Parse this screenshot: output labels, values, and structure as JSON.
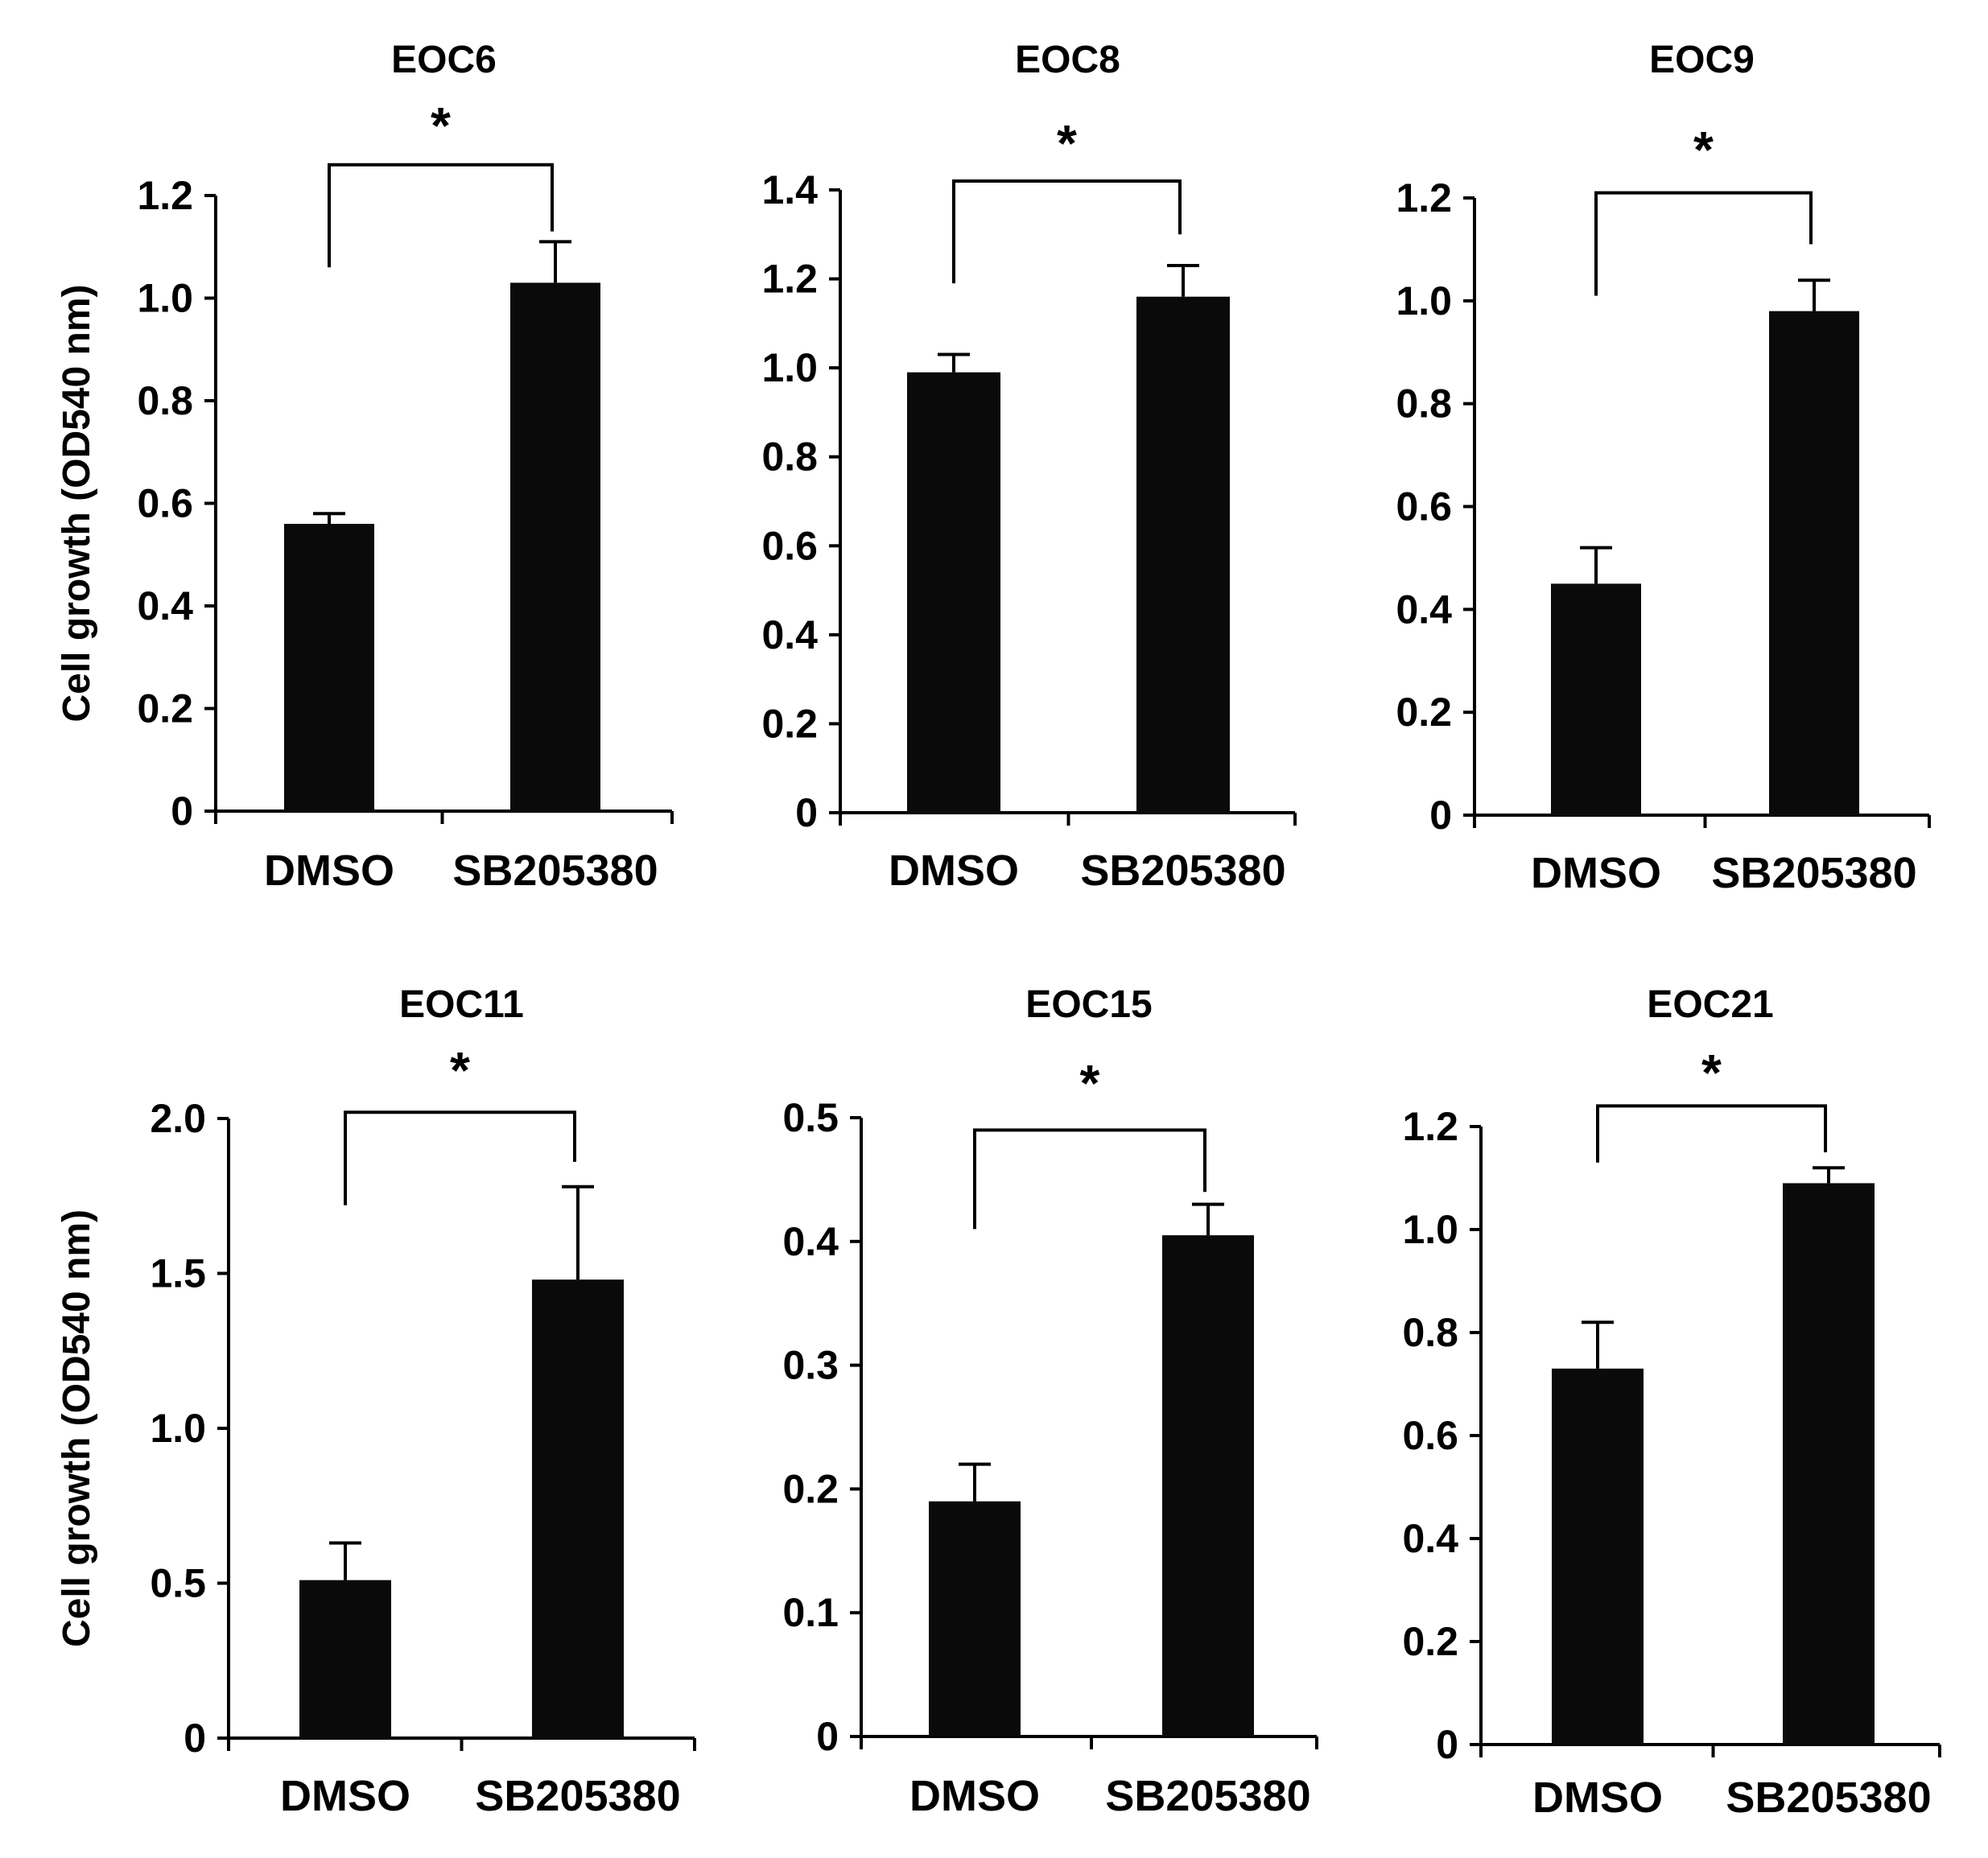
{
  "chart_data": [
    {
      "type": "bar",
      "title": "EOC6",
      "ylabel": "Cell growth (OD540 nm)",
      "categories": [
        "DMSO",
        "SB205380"
      ],
      "values": [
        0.56,
        1.03
      ],
      "errors": [
        0.02,
        0.08
      ],
      "ylim": [
        0,
        1.2
      ],
      "yticks": [
        0,
        0.2,
        0.4,
        0.6,
        0.8,
        1.0,
        1.2
      ],
      "ytick_labels": [
        "0",
        "0.2",
        "0.4",
        "0.6",
        "0.8",
        "1.0",
        "1.2"
      ],
      "bracket_left": 1.06,
      "bracket_right": 1.13,
      "bracket_top": 1.26,
      "significance": "*"
    },
    {
      "type": "bar",
      "title": "EOC8",
      "ylabel": "",
      "categories": [
        "DMSO",
        "SB205380"
      ],
      "values": [
        0.99,
        1.16
      ],
      "errors": [
        0.04,
        0.07
      ],
      "ylim": [
        0,
        1.4
      ],
      "yticks": [
        0,
        0.2,
        0.4,
        0.6,
        0.8,
        1.0,
        1.2,
        1.4
      ],
      "ytick_labels": [
        "0",
        "0.2",
        "0.4",
        "0.6",
        "0.8",
        "1.0",
        "1.2",
        "1.4"
      ],
      "bracket_left": 1.19,
      "bracket_right": 1.3,
      "bracket_top": 1.42,
      "significance": "*"
    },
    {
      "type": "bar",
      "title": "EOC9",
      "ylabel": "",
      "categories": [
        "DMSO",
        "SB205380"
      ],
      "values": [
        0.45,
        0.98
      ],
      "errors": [
        0.07,
        0.06
      ],
      "ylim": [
        0,
        1.2
      ],
      "yticks": [
        0,
        0.2,
        0.4,
        0.6,
        0.8,
        1.0,
        1.2
      ],
      "ytick_labels": [
        "0",
        "0.2",
        "0.4",
        "0.6",
        "0.8",
        "1.0",
        "1.2"
      ],
      "bracket_left": 1.01,
      "bracket_right": 1.11,
      "bracket_top": 1.21,
      "significance": "*"
    },
    {
      "type": "bar",
      "title": "EOC11",
      "ylabel": "Cell growth (OD540 nm)",
      "categories": [
        "DMSO",
        "SB205380"
      ],
      "values": [
        0.51,
        1.48
      ],
      "errors": [
        0.12,
        0.3
      ],
      "ylim": [
        0,
        2.0
      ],
      "yticks": [
        0,
        0.5,
        1.0,
        1.5,
        2.0
      ],
      "ytick_labels": [
        "0",
        "0.5",
        "1.0",
        "1.5",
        "2.0"
      ],
      "bracket_left": 1.72,
      "bracket_right": 1.86,
      "bracket_top": 2.02,
      "significance": "*"
    },
    {
      "type": "bar",
      "title": "EOC15",
      "ylabel": "",
      "categories": [
        "DMSO",
        "SB205380"
      ],
      "values": [
        0.19,
        0.405
      ],
      "errors": [
        0.03,
        0.025
      ],
      "ylim": [
        0,
        0.5
      ],
      "yticks": [
        0,
        0.1,
        0.2,
        0.3,
        0.4,
        0.5
      ],
      "ytick_labels": [
        "0",
        "0.1",
        "0.2",
        "0.3",
        "0.4",
        "0.5"
      ],
      "bracket_left": 0.41,
      "bracket_right": 0.44,
      "bracket_top": 0.49,
      "significance": "*"
    },
    {
      "type": "bar",
      "title": "EOC21",
      "ylabel": "",
      "categories": [
        "DMSO",
        "SB205380"
      ],
      "values": [
        0.73,
        1.09
      ],
      "errors": [
        0.09,
        0.03
      ],
      "ylim": [
        0,
        1.2
      ],
      "yticks": [
        0,
        0.2,
        0.4,
        0.6,
        0.8,
        1.0,
        1.2
      ],
      "ytick_labels": [
        "0",
        "0.2",
        "0.4",
        "0.6",
        "0.8",
        "1.0",
        "1.2"
      ],
      "bracket_left": 1.13,
      "bracket_right": 1.15,
      "bracket_top": 1.24,
      "significance": "*"
    }
  ],
  "colors": {
    "bar": "#0a0a0a",
    "axis": "#000000",
    "background": "#ffffff"
  }
}
